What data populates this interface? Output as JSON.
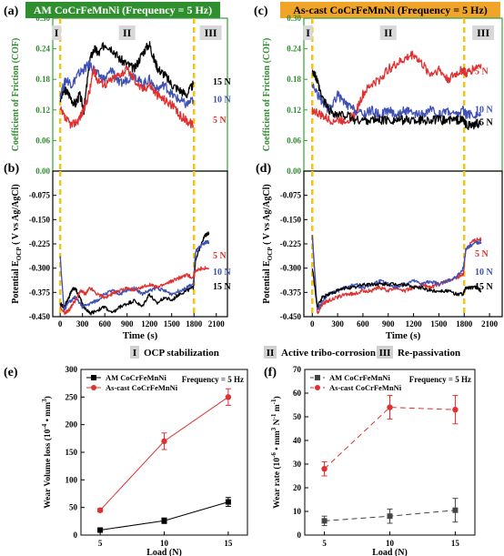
{
  "panel_labels": {
    "a": "(a)",
    "b": "(b)",
    "c": "(c)",
    "d": "(d)",
    "e": "(e)",
    "f": "(f)"
  },
  "colors": {
    "black": "#000000",
    "blue": "#3f51b5",
    "red": "#e03030",
    "frame_green": "#3a9c3a",
    "title_green_bg": "#2f8f2f",
    "title_gold_bg": "#f0a52a",
    "phase_line": "#f0c419",
    "ylabel_green": "#2e8b2e",
    "tick_green": "#2e8b2e"
  },
  "legend_phases": [
    {
      "mark": "I",
      "text": "OCP stabilization"
    },
    {
      "mark": "II",
      "text": "Active tribo-corrosion"
    },
    {
      "mark": "III",
      "text": "Re-passivation"
    }
  ],
  "chart_data": [
    {
      "id": "a",
      "type": "line",
      "title": "AM CoCrFeMnNi (Frequency = 5 Hz)",
      "ylabel": "Coefficient of Friction (COF)",
      "ylim": [
        0.0,
        0.3
      ],
      "yticks": [
        "0.00",
        "0.06",
        "0.12",
        "0.18",
        "0.24",
        "0.30"
      ],
      "xlim": [
        -100,
        2250
      ],
      "phase_marks": [
        "I",
        "II",
        "III"
      ],
      "phase_lines_x": [
        0,
        1800
      ],
      "series": [
        {
          "name": "15 N",
          "color": "#000000",
          "x": [
            0,
            60,
            120,
            200,
            260,
            320,
            400,
            460,
            520,
            600,
            700,
            800,
            900,
            1000,
            1100,
            1200,
            1260,
            1320,
            1400,
            1500,
            1600,
            1700,
            1790
          ],
          "y": [
            0.14,
            0.16,
            0.15,
            0.13,
            0.15,
            0.12,
            0.22,
            0.24,
            0.23,
            0.25,
            0.24,
            0.22,
            0.21,
            0.2,
            0.23,
            0.25,
            0.22,
            0.2,
            0.19,
            0.17,
            0.16,
            0.15,
            0.17
          ]
        },
        {
          "name": "10 N",
          "color": "#3f51b5",
          "x": [
            0,
            80,
            160,
            240,
            320,
            400,
            500,
            600,
            700,
            800,
            900,
            1000,
            1100,
            1200,
            1300,
            1400,
            1500,
            1600,
            1700,
            1790
          ],
          "y": [
            0.15,
            0.18,
            0.17,
            0.19,
            0.2,
            0.21,
            0.19,
            0.18,
            0.2,
            0.17,
            0.18,
            0.19,
            0.17,
            0.18,
            0.16,
            0.17,
            0.15,
            0.14,
            0.13,
            0.14
          ]
        },
        {
          "name": "5 N",
          "color": "#e03030",
          "x": [
            0,
            80,
            160,
            240,
            320,
            400,
            450,
            500,
            600,
            700,
            800,
            900,
            1000,
            1100,
            1200,
            1300,
            1400,
            1500,
            1600,
            1700,
            1790
          ],
          "y": [
            0.12,
            0.1,
            0.09,
            0.1,
            0.12,
            0.16,
            0.2,
            0.18,
            0.17,
            0.18,
            0.19,
            0.2,
            0.18,
            0.16,
            0.17,
            0.15,
            0.14,
            0.13,
            0.11,
            0.1,
            0.09
          ]
        }
      ],
      "series_labels": [
        "15 N",
        "10 N",
        "5 N"
      ]
    },
    {
      "id": "b",
      "type": "line",
      "ylabel": "Potential E",
      "ylabel_sub": "OCP",
      "ylabel_tail": " ( V vs Ag/AgCl)",
      "xlabel": "Time (s)",
      "ylim": [
        -0.45,
        0.0
      ],
      "yticks": [
        "-0.450",
        "-0.375",
        "-0.300",
        "-0.225",
        "-0.150",
        "-0.075"
      ],
      "xlim": [
        -100,
        2250
      ],
      "xticks": [
        "0",
        "300",
        "600",
        "900",
        "1200",
        "1500",
        "1800",
        "2100"
      ],
      "phase_lines_x": [
        0,
        1800
      ],
      "series": [
        {
          "name": "15 N",
          "color": "#000000",
          "x": [
            0,
            50,
            100,
            150,
            200,
            260,
            320,
            400,
            500,
            600,
            700,
            800,
            900,
            1000,
            1100,
            1200,
            1300,
            1400,
            1500,
            1600,
            1700,
            1790,
            1820,
            1900,
            1950,
            2000
          ],
          "y": [
            -0.41,
            -0.42,
            -0.4,
            -0.37,
            -0.36,
            -0.39,
            -0.42,
            -0.44,
            -0.43,
            -0.42,
            -0.44,
            -0.42,
            -0.41,
            -0.4,
            -0.42,
            -0.38,
            -0.41,
            -0.39,
            -0.4,
            -0.38,
            -0.37,
            -0.36,
            -0.28,
            -0.22,
            -0.2,
            -0.19
          ]
        },
        {
          "name": "10 N",
          "color": "#3f51b5",
          "x": [
            0,
            50,
            100,
            200,
            300,
            400,
            500,
            600,
            700,
            800,
            900,
            1000,
            1100,
            1200,
            1300,
            1400,
            1500,
            1600,
            1700,
            1790,
            1820,
            1900,
            1950,
            2000
          ],
          "y": [
            -0.26,
            -0.43,
            -0.41,
            -0.39,
            -0.42,
            -0.41,
            -0.4,
            -0.38,
            -0.37,
            -0.38,
            -0.37,
            -0.36,
            -0.38,
            -0.37,
            -0.36,
            -0.37,
            -0.38,
            -0.37,
            -0.36,
            -0.35,
            -0.25,
            -0.23,
            -0.22,
            -0.22
          ]
        },
        {
          "name": "5 N",
          "color": "#e03030",
          "x": [
            0,
            60,
            120,
            200,
            280,
            340,
            400,
            500,
            600,
            700,
            800,
            900,
            1000,
            1100,
            1200,
            1300,
            1400,
            1500,
            1600,
            1700,
            1790,
            1820,
            1900,
            2000
          ],
          "y": [
            -0.42,
            -0.44,
            -0.43,
            -0.4,
            -0.37,
            -0.38,
            -0.36,
            -0.38,
            -0.39,
            -0.38,
            -0.37,
            -0.36,
            -0.37,
            -0.36,
            -0.35,
            -0.36,
            -0.35,
            -0.34,
            -0.33,
            -0.32,
            -0.33,
            -0.31,
            -0.3,
            -0.3
          ]
        }
      ],
      "series_labels": [
        "5 N",
        "10 N",
        "15 N"
      ]
    },
    {
      "id": "c",
      "type": "line",
      "title": "As-cast CoCrFeMnNi (Frequency = 5 Hz)",
      "ylabel": "Coefficient of Friction (COF)",
      "ylim": [
        0.0,
        0.3
      ],
      "yticks": [
        "0.00",
        "0.06",
        "0.12",
        "0.18",
        "0.24",
        "0.30"
      ],
      "xlim": [
        -100,
        2250
      ],
      "phase_marks": [
        "I",
        "II",
        "III"
      ],
      "phase_lines_x": [
        0,
        1800
      ],
      "series": [
        {
          "name": "5 N",
          "color": "#e03030",
          "x": [
            0,
            100,
            200,
            300,
            400,
            500,
            600,
            700,
            800,
            900,
            1000,
            1100,
            1200,
            1300,
            1400,
            1500,
            1600,
            1700,
            1790,
            1820,
            1900,
            2000
          ],
          "y": [
            0.12,
            0.11,
            0.1,
            0.1,
            0.1,
            0.11,
            0.15,
            0.17,
            0.18,
            0.2,
            0.21,
            0.22,
            0.23,
            0.21,
            0.19,
            0.2,
            0.18,
            0.19,
            0.2,
            0.19,
            0.2,
            0.21
          ]
        },
        {
          "name": "10 N",
          "color": "#3f51b5",
          "x": [
            0,
            100,
            200,
            300,
            400,
            500,
            600,
            700,
            800,
            900,
            1000,
            1100,
            1200,
            1300,
            1400,
            1500,
            1600,
            1700,
            1790,
            1820,
            1900,
            2000
          ],
          "y": [
            0.17,
            0.14,
            0.12,
            0.15,
            0.13,
            0.12,
            0.11,
            0.12,
            0.11,
            0.12,
            0.11,
            0.12,
            0.11,
            0.11,
            0.12,
            0.11,
            0.12,
            0.11,
            0.12,
            0.11,
            0.11,
            0.11
          ]
        },
        {
          "name": "15 N",
          "color": "#000000",
          "x": [
            0,
            50,
            100,
            200,
            300,
            400,
            500,
            600,
            700,
            800,
            900,
            1000,
            1100,
            1200,
            1300,
            1400,
            1500,
            1600,
            1700,
            1790,
            1820,
            1900,
            2000
          ],
          "y": [
            0.2,
            0.18,
            0.15,
            0.12,
            0.11,
            0.11,
            0.1,
            0.1,
            0.1,
            0.1,
            0.1,
            0.1,
            0.1,
            0.1,
            0.1,
            0.1,
            0.1,
            0.1,
            0.1,
            0.1,
            0.09,
            0.09,
            0.09
          ]
        }
      ],
      "series_labels": [
        "5 N",
        "10 N",
        "15 N"
      ]
    },
    {
      "id": "d",
      "type": "line",
      "ylabel": "Potential E",
      "ylabel_sub": "OCP",
      "ylabel_tail": " ( V vs Ag/AgCl)",
      "xlabel": "Time (s)",
      "ylim": [
        -0.45,
        0.0
      ],
      "yticks": [
        "-0.450",
        "-0.375",
        "-0.300",
        "-0.225",
        "-0.150",
        "-0.075"
      ],
      "xlim": [
        -100,
        2250
      ],
      "xticks": [
        "0",
        "300",
        "600",
        "900",
        "1200",
        "1500",
        "1800",
        "2100"
      ],
      "phase_lines_x": [
        0,
        1800
      ],
      "series": [
        {
          "name": "5 N",
          "color": "#e03030",
          "x": [
            0,
            60,
            120,
            200,
            300,
            400,
            500,
            600,
            700,
            800,
            900,
            1000,
            1100,
            1200,
            1300,
            1400,
            1500,
            1600,
            1700,
            1790,
            1820,
            1880,
            1950,
            2000
          ],
          "y": [
            -0.2,
            -0.44,
            -0.41,
            -0.4,
            -0.39,
            -0.38,
            -0.38,
            -0.37,
            -0.37,
            -0.36,
            -0.37,
            -0.36,
            -0.37,
            -0.36,
            -0.35,
            -0.36,
            -0.35,
            -0.34,
            -0.33,
            -0.32,
            -0.24,
            -0.22,
            -0.21,
            -0.21
          ]
        },
        {
          "name": "10 N",
          "color": "#3f51b5",
          "x": [
            0,
            60,
            120,
            200,
            300,
            400,
            500,
            600,
            700,
            800,
            900,
            1000,
            1100,
            1200,
            1300,
            1400,
            1500,
            1600,
            1700,
            1790,
            1820,
            1880,
            1950,
            2000
          ],
          "y": [
            -0.2,
            -0.43,
            -0.4,
            -0.38,
            -0.37,
            -0.36,
            -0.35,
            -0.36,
            -0.35,
            -0.34,
            -0.35,
            -0.36,
            -0.35,
            -0.34,
            -0.35,
            -0.34,
            -0.35,
            -0.34,
            -0.33,
            -0.3,
            -0.24,
            -0.23,
            -0.22,
            -0.22
          ]
        },
        {
          "name": "15 N",
          "color": "#000000",
          "x": [
            0,
            60,
            120,
            200,
            300,
            400,
            500,
            600,
            700,
            800,
            900,
            1000,
            1100,
            1200,
            1300,
            1400,
            1500,
            1600,
            1700,
            1790,
            1820,
            1880,
            1950,
            2000
          ],
          "y": [
            -0.3,
            -0.42,
            -0.39,
            -0.38,
            -0.37,
            -0.36,
            -0.36,
            -0.35,
            -0.35,
            -0.35,
            -0.35,
            -0.35,
            -0.35,
            -0.36,
            -0.36,
            -0.37,
            -0.37,
            -0.37,
            -0.38,
            -0.38,
            -0.36,
            -0.36,
            -0.36,
            -0.37
          ]
        }
      ],
      "series_labels": [
        "5 N",
        "10 N",
        "15 N"
      ]
    },
    {
      "id": "e",
      "type": "line",
      "xlabel": "Load (N)",
      "ylabel": "Wear Volume loss (10",
      "ylabel_sup": "-4",
      "ylabel_mid": " • mm",
      "ylabel_sup2": "3",
      "ylabel_end": ")",
      "annotation": "Frequency = 5 Hz",
      "ylim": [
        0,
        300
      ],
      "yticks": [
        "0",
        "50",
        "100",
        "150",
        "200",
        "250",
        "300"
      ],
      "xlim": [
        3.5,
        16.5
      ],
      "xticks": [
        "5",
        "10",
        "15"
      ],
      "categories": [
        5,
        10,
        15
      ],
      "series": [
        {
          "name": "AM CoCrFeMnNi",
          "color": "#000000",
          "marker": "square",
          "values": [
            9,
            26,
            60
          ],
          "errors": [
            2,
            5,
            8
          ]
        },
        {
          "name": "As-cast CoCrFeMnNi",
          "color": "#e03030",
          "marker": "circle",
          "values": [
            45,
            170,
            250
          ],
          "errors": [
            3,
            15,
            15
          ]
        }
      ]
    },
    {
      "id": "f",
      "type": "line",
      "xlabel": "Load (N)",
      "ylabel": "Wear rate (10",
      "ylabel_sup": "-6",
      "ylabel_mid": " • mm",
      "ylabel_sup2": "3",
      "ylabel_mid2": " N",
      "ylabel_sup3": "-1",
      "ylabel_mid3": " m",
      "ylabel_sup4": "-1",
      "ylabel_end": ")",
      "annotation": "Frequency = 5 Hz",
      "ylim": [
        0,
        70
      ],
      "yticks": [
        "0",
        "10",
        "20",
        "30",
        "40",
        "50",
        "60",
        "70"
      ],
      "xlim": [
        3.5,
        16.5
      ],
      "xticks": [
        "5",
        "10",
        "15"
      ],
      "categories": [
        5,
        10,
        15
      ],
      "series": [
        {
          "name": "AM CoCrFeMnNi",
          "color": "#444444",
          "marker": "square",
          "dashed": true,
          "values": [
            6,
            8,
            10.5
          ],
          "errors": [
            2,
            3,
            5
          ]
        },
        {
          "name": "As-cast CoCrFeMnNi",
          "color": "#e03030",
          "marker": "circle",
          "dashed": true,
          "values": [
            28,
            54,
            53
          ],
          "errors": [
            3,
            5,
            6
          ]
        }
      ]
    }
  ]
}
